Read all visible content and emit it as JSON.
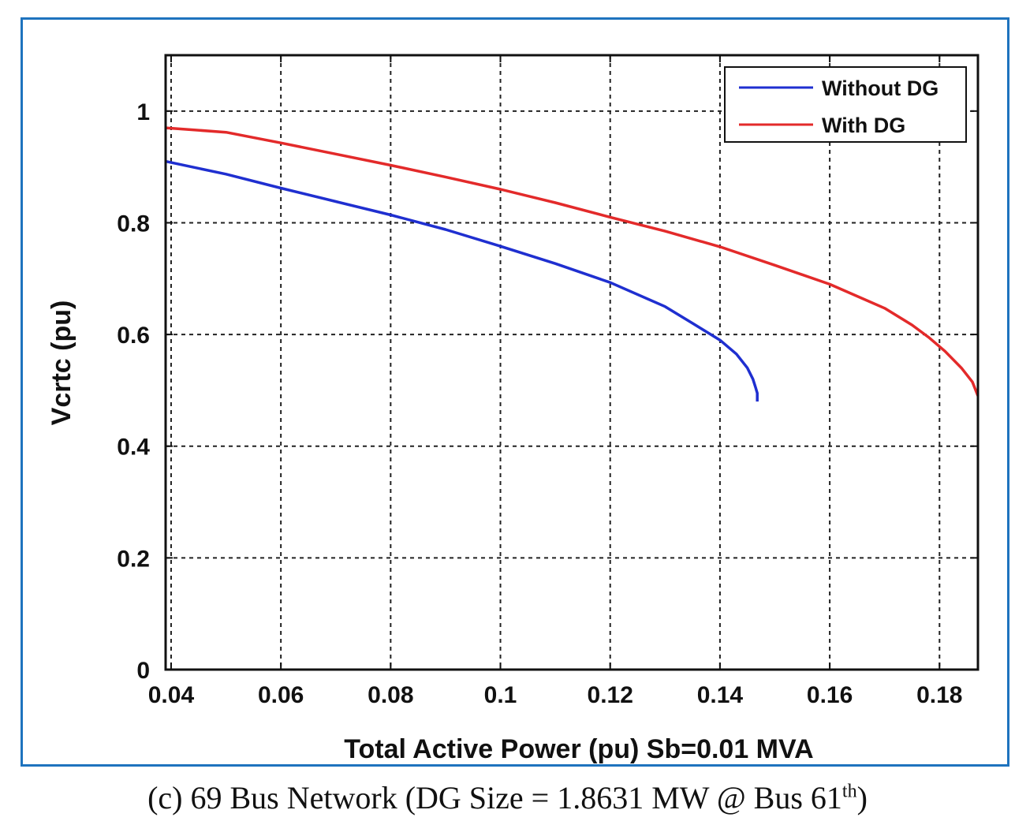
{
  "chart_data": {
    "type": "line",
    "title": "",
    "xlabel": "Total Active Power (pu) Sb=0.01 MVA",
    "ylabel": "Vcrtc (pu)",
    "xlim": [
      0.039,
      0.187
    ],
    "ylim": [
      0,
      1.1
    ],
    "xticks": [
      0.04,
      0.06,
      0.08,
      0.1,
      0.12,
      0.14,
      0.16,
      0.18
    ],
    "xtick_labels": [
      "0.04",
      "0.06",
      "0.08",
      "0.1",
      "0.12",
      "0.14",
      "0.16",
      "0.18"
    ],
    "yticks": [
      0,
      0.2,
      0.4,
      0.6,
      0.8,
      1
    ],
    "ytick_labels": [
      "0",
      "0.2",
      "0.4",
      "0.6",
      "0.8",
      "1"
    ],
    "grid": true,
    "legend_position": "top-right",
    "series": [
      {
        "name": "Without DG",
        "color": "#1f2fd0",
        "x": [
          0.039,
          0.05,
          0.06,
          0.07,
          0.08,
          0.09,
          0.1,
          0.11,
          0.12,
          0.13,
          0.135,
          0.14,
          0.143,
          0.145,
          0.146,
          0.1465,
          0.1468,
          0.1468
        ],
        "y": [
          0.91,
          0.887,
          0.862,
          0.838,
          0.814,
          0.788,
          0.758,
          0.727,
          0.693,
          0.65,
          0.62,
          0.59,
          0.565,
          0.54,
          0.52,
          0.505,
          0.495,
          0.48
        ]
      },
      {
        "name": "With DG",
        "color": "#e32a2a",
        "x": [
          0.039,
          0.05,
          0.06,
          0.07,
          0.08,
          0.09,
          0.1,
          0.11,
          0.12,
          0.13,
          0.14,
          0.15,
          0.16,
          0.17,
          0.175,
          0.178,
          0.181,
          0.184,
          0.186,
          0.187
        ],
        "y": [
          0.97,
          0.962,
          0.943,
          0.923,
          0.903,
          0.882,
          0.86,
          0.836,
          0.81,
          0.785,
          0.757,
          0.724,
          0.69,
          0.647,
          0.617,
          0.595,
          0.57,
          0.54,
          0.515,
          0.49
        ]
      }
    ]
  },
  "caption": {
    "text": "(c) 69 Bus Network (DG Size = 1.8631 MW @ Bus 61",
    "sup": "th",
    "tail": ")"
  }
}
